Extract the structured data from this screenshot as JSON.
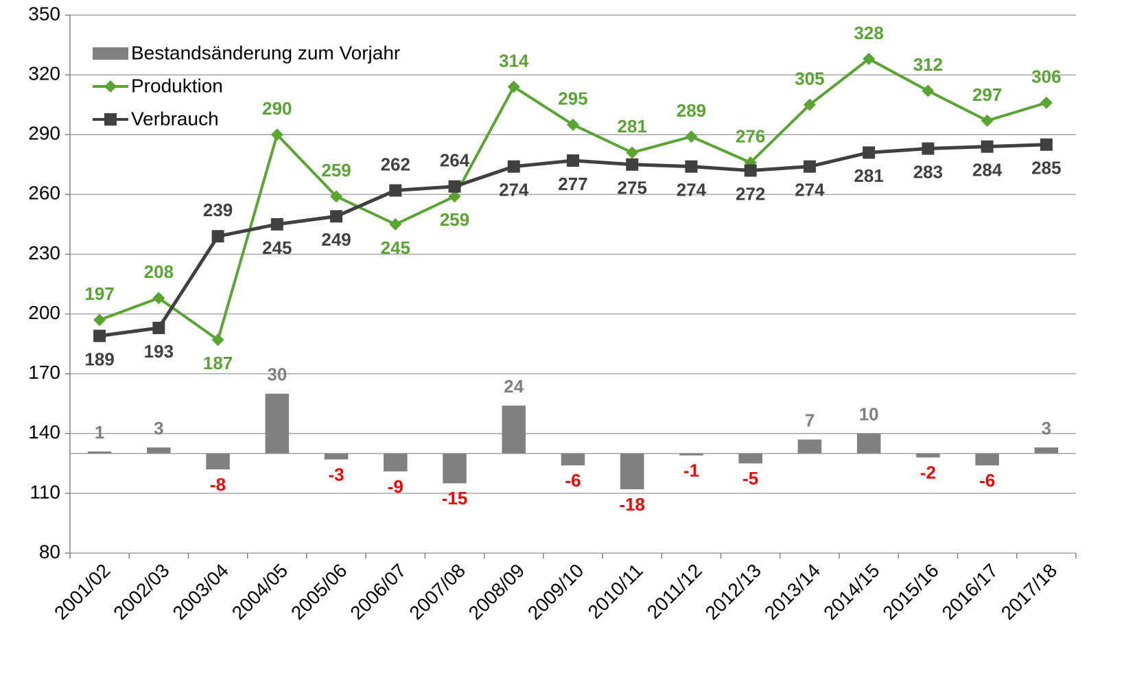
{
  "chart_data": {
    "type": "bar-line",
    "categories": [
      "2001/02",
      "2002/03",
      "2003/04",
      "2004/05",
      "2005/06",
      "2006/07",
      "2007/08",
      "2008/09",
      "2009/10",
      "2010/11",
      "2011/12",
      "2012/13",
      "2013/14",
      "2014/15",
      "2015/16",
      "2016/17",
      "2017/18"
    ],
    "series": [
      {
        "name": "Bestandsänderung zum Vorjahr",
        "type": "bar",
        "axis": "y2",
        "color": "#808080",
        "negative_label_color": "#ff0000",
        "values": [
          1,
          3,
          -8,
          30,
          -3,
          -9,
          -15,
          24,
          -6,
          -18,
          -1,
          -5,
          7,
          10,
          -2,
          -6,
          3
        ]
      },
      {
        "name": "Produktion",
        "type": "line",
        "marker": "diamond",
        "color": "#5aa532",
        "values": [
          197,
          208,
          187,
          290,
          259,
          245,
          259,
          314,
          295,
          281,
          289,
          276,
          305,
          328,
          312,
          297,
          306
        ]
      },
      {
        "name": "Verbrauch",
        "type": "line",
        "marker": "square",
        "color": "#404040",
        "values": [
          189,
          193,
          239,
          245,
          249,
          262,
          264,
          274,
          277,
          275,
          274,
          272,
          274,
          281,
          283,
          284,
          285
        ]
      }
    ],
    "ylim": [
      80,
      350
    ],
    "yticks": [
      80,
      110,
      140,
      170,
      200,
      230,
      260,
      290,
      320,
      350
    ],
    "y2lim": [
      -50,
      220
    ],
    "grid": true,
    "legend": "top-left"
  }
}
